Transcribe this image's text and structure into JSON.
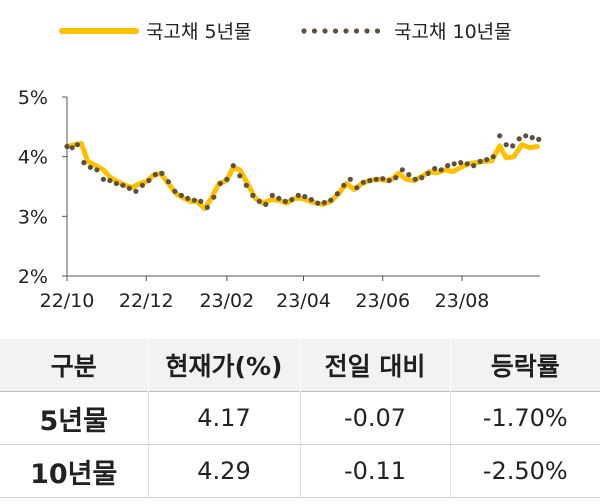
{
  "chart_data": {
    "type": "line",
    "title": "",
    "xlabel": "",
    "ylabel": "",
    "ylim": [
      2,
      5
    ],
    "y_ticks": [
      "5%",
      "4%",
      "3%",
      "2%"
    ],
    "y_tick_values": [
      5,
      4,
      3,
      2
    ],
    "x_ticks": [
      "22/10",
      "22/12",
      "23/02",
      "23/04",
      "23/06",
      "23/08"
    ],
    "x_tick_dates": [
      "2022-10-01",
      "2022-12-01",
      "2023-02-01",
      "2023-04-01",
      "2023-06-01",
      "2023-08-01"
    ],
    "xlim": [
      "2022-10-01",
      "2023-09-30"
    ],
    "grid": false,
    "legend_position": "top",
    "series": [
      {
        "name": "국고채 5년물",
        "style": "solid",
        "color": "#FFC000",
        "points": [
          [
            "2022-10-01",
            4.17
          ],
          [
            "2022-10-07",
            4.2
          ],
          [
            "2022-10-12",
            4.22
          ],
          [
            "2022-10-17",
            3.92
          ],
          [
            "2022-10-23",
            3.85
          ],
          [
            "2022-10-29",
            3.78
          ],
          [
            "2022-11-03",
            3.66
          ],
          [
            "2022-11-09",
            3.58
          ],
          [
            "2022-11-15",
            3.52
          ],
          [
            "2022-11-20",
            3.48
          ],
          [
            "2022-11-26",
            3.55
          ],
          [
            "2022-12-01",
            3.58
          ],
          [
            "2022-12-07",
            3.7
          ],
          [
            "2022-12-12",
            3.72
          ],
          [
            "2022-12-18",
            3.55
          ],
          [
            "2022-12-24",
            3.38
          ],
          [
            "2022-12-30",
            3.3
          ],
          [
            "2023-01-04",
            3.25
          ],
          [
            "2023-01-09",
            3.25
          ],
          [
            "2023-01-15",
            3.13
          ],
          [
            "2023-01-20",
            3.3
          ],
          [
            "2023-01-26",
            3.55
          ],
          [
            "2023-02-01",
            3.6
          ],
          [
            "2023-02-06",
            3.82
          ],
          [
            "2023-02-11",
            3.78
          ],
          [
            "2023-02-17",
            3.55
          ],
          [
            "2023-02-23",
            3.3
          ],
          [
            "2023-03-01",
            3.22
          ],
          [
            "2023-03-07",
            3.28
          ],
          [
            "2023-03-13",
            3.27
          ],
          [
            "2023-03-19",
            3.22
          ],
          [
            "2023-03-25",
            3.3
          ],
          [
            "2023-03-31",
            3.3
          ],
          [
            "2023-04-05",
            3.26
          ],
          [
            "2023-04-11",
            3.22
          ],
          [
            "2023-04-16",
            3.2
          ],
          [
            "2023-04-22",
            3.25
          ],
          [
            "2023-04-28",
            3.38
          ],
          [
            "2023-05-04",
            3.55
          ],
          [
            "2023-05-10",
            3.45
          ],
          [
            "2023-05-16",
            3.55
          ],
          [
            "2023-05-22",
            3.6
          ],
          [
            "2023-05-28",
            3.62
          ],
          [
            "2023-06-03",
            3.6
          ],
          [
            "2023-06-08",
            3.62
          ],
          [
            "2023-06-13",
            3.72
          ],
          [
            "2023-06-19",
            3.62
          ],
          [
            "2023-06-25",
            3.6
          ],
          [
            "2023-07-01",
            3.67
          ],
          [
            "2023-07-07",
            3.75
          ],
          [
            "2023-07-13",
            3.73
          ],
          [
            "2023-07-19",
            3.78
          ],
          [
            "2023-07-25",
            3.75
          ],
          [
            "2023-07-31",
            3.82
          ],
          [
            "2023-08-06",
            3.88
          ],
          [
            "2023-08-12",
            3.9
          ],
          [
            "2023-08-18",
            3.92
          ],
          [
            "2023-08-24",
            3.93
          ],
          [
            "2023-08-30",
            4.18
          ],
          [
            "2023-09-04",
            3.98
          ],
          [
            "2023-09-10",
            4.0
          ],
          [
            "2023-09-16",
            4.2
          ],
          [
            "2023-09-22",
            4.15
          ],
          [
            "2023-09-28",
            4.17
          ]
        ]
      },
      {
        "name": "국고채 10년물",
        "style": "dotted",
        "color": "#5B5140",
        "points": [
          [
            "2022-10-01",
            4.17
          ],
          [
            "2022-10-05",
            4.15
          ],
          [
            "2022-10-09",
            4.2
          ],
          [
            "2022-10-14",
            3.9
          ],
          [
            "2022-10-19",
            3.82
          ],
          [
            "2022-10-24",
            3.78
          ],
          [
            "2022-10-29",
            3.62
          ],
          [
            "2022-11-03",
            3.6
          ],
          [
            "2022-11-08",
            3.55
          ],
          [
            "2022-11-13",
            3.52
          ],
          [
            "2022-11-18",
            3.47
          ],
          [
            "2022-11-23",
            3.42
          ],
          [
            "2022-11-28",
            3.52
          ],
          [
            "2022-12-03",
            3.6
          ],
          [
            "2022-12-08",
            3.7
          ],
          [
            "2022-12-13",
            3.72
          ],
          [
            "2022-12-18",
            3.58
          ],
          [
            "2022-12-23",
            3.42
          ],
          [
            "2022-12-28",
            3.35
          ],
          [
            "2023-01-02",
            3.3
          ],
          [
            "2023-01-07",
            3.27
          ],
          [
            "2023-01-12",
            3.25
          ],
          [
            "2023-01-17",
            3.15
          ],
          [
            "2023-01-22",
            3.32
          ],
          [
            "2023-01-27",
            3.55
          ],
          [
            "2023-02-01",
            3.62
          ],
          [
            "2023-02-06",
            3.85
          ],
          [
            "2023-02-11",
            3.68
          ],
          [
            "2023-02-16",
            3.52
          ],
          [
            "2023-02-21",
            3.35
          ],
          [
            "2023-02-26",
            3.25
          ],
          [
            "2023-03-03",
            3.2
          ],
          [
            "2023-03-08",
            3.35
          ],
          [
            "2023-03-13",
            3.3
          ],
          [
            "2023-03-18",
            3.25
          ],
          [
            "2023-03-23",
            3.28
          ],
          [
            "2023-03-28",
            3.35
          ],
          [
            "2023-04-02",
            3.33
          ],
          [
            "2023-04-07",
            3.28
          ],
          [
            "2023-04-12",
            3.22
          ],
          [
            "2023-04-17",
            3.23
          ],
          [
            "2023-04-22",
            3.27
          ],
          [
            "2023-04-27",
            3.38
          ],
          [
            "2023-05-02",
            3.52
          ],
          [
            "2023-05-07",
            3.62
          ],
          [
            "2023-05-12",
            3.48
          ],
          [
            "2023-05-17",
            3.57
          ],
          [
            "2023-05-22",
            3.6
          ],
          [
            "2023-05-27",
            3.62
          ],
          [
            "2023-06-01",
            3.63
          ],
          [
            "2023-06-06",
            3.6
          ],
          [
            "2023-06-11",
            3.65
          ],
          [
            "2023-06-16",
            3.78
          ],
          [
            "2023-06-21",
            3.7
          ],
          [
            "2023-06-26",
            3.62
          ],
          [
            "2023-07-01",
            3.65
          ],
          [
            "2023-07-06",
            3.72
          ],
          [
            "2023-07-11",
            3.8
          ],
          [
            "2023-07-16",
            3.78
          ],
          [
            "2023-07-21",
            3.85
          ],
          [
            "2023-07-26",
            3.88
          ],
          [
            "2023-07-31",
            3.9
          ],
          [
            "2023-08-05",
            3.88
          ],
          [
            "2023-08-10",
            3.85
          ],
          [
            "2023-08-15",
            3.92
          ],
          [
            "2023-08-20",
            3.95
          ],
          [
            "2023-08-25",
            4.0
          ],
          [
            "2023-08-30",
            4.35
          ],
          [
            "2023-09-04",
            4.2
          ],
          [
            "2023-09-09",
            4.18
          ],
          [
            "2023-09-14",
            4.3
          ],
          [
            "2023-09-19",
            4.35
          ],
          [
            "2023-09-24",
            4.32
          ],
          [
            "2023-09-29",
            4.29
          ]
        ]
      }
    ]
  },
  "table": {
    "headers": [
      "구분",
      "현재가(%)",
      "전일 대비",
      "등락률"
    ],
    "rows": [
      [
        "5년물",
        "4.17",
        "-0.07",
        "-1.70%"
      ],
      [
        "10년물",
        "4.29",
        "-0.11",
        "-2.50%"
      ]
    ]
  }
}
